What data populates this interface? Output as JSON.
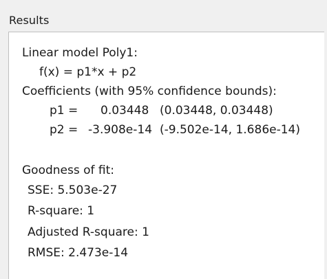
{
  "panel": {
    "title": "Results"
  },
  "results": {
    "model_line": "Linear model Poly1:",
    "formula_line": "f(x) = p1*x + p2",
    "coefficients_header": "Coefficients (with 95% confidence bounds):",
    "coefficients": [
      {
        "label": "p1 =",
        "value": "0.03448",
        "bounds": "(0.03448, 0.03448)"
      },
      {
        "label": "p2 =",
        "value": "-3.908e-14",
        "bounds": "(-9.502e-14, 1.686e-14)"
      }
    ],
    "goodness_header": "Goodness of fit:",
    "goodness": [
      {
        "text": "SSE: 5.503e-27"
      },
      {
        "text": "R-square: 1"
      },
      {
        "text": "Adjusted R-square: 1"
      },
      {
        "text": "RMSE: 2.473e-14"
      }
    ]
  }
}
